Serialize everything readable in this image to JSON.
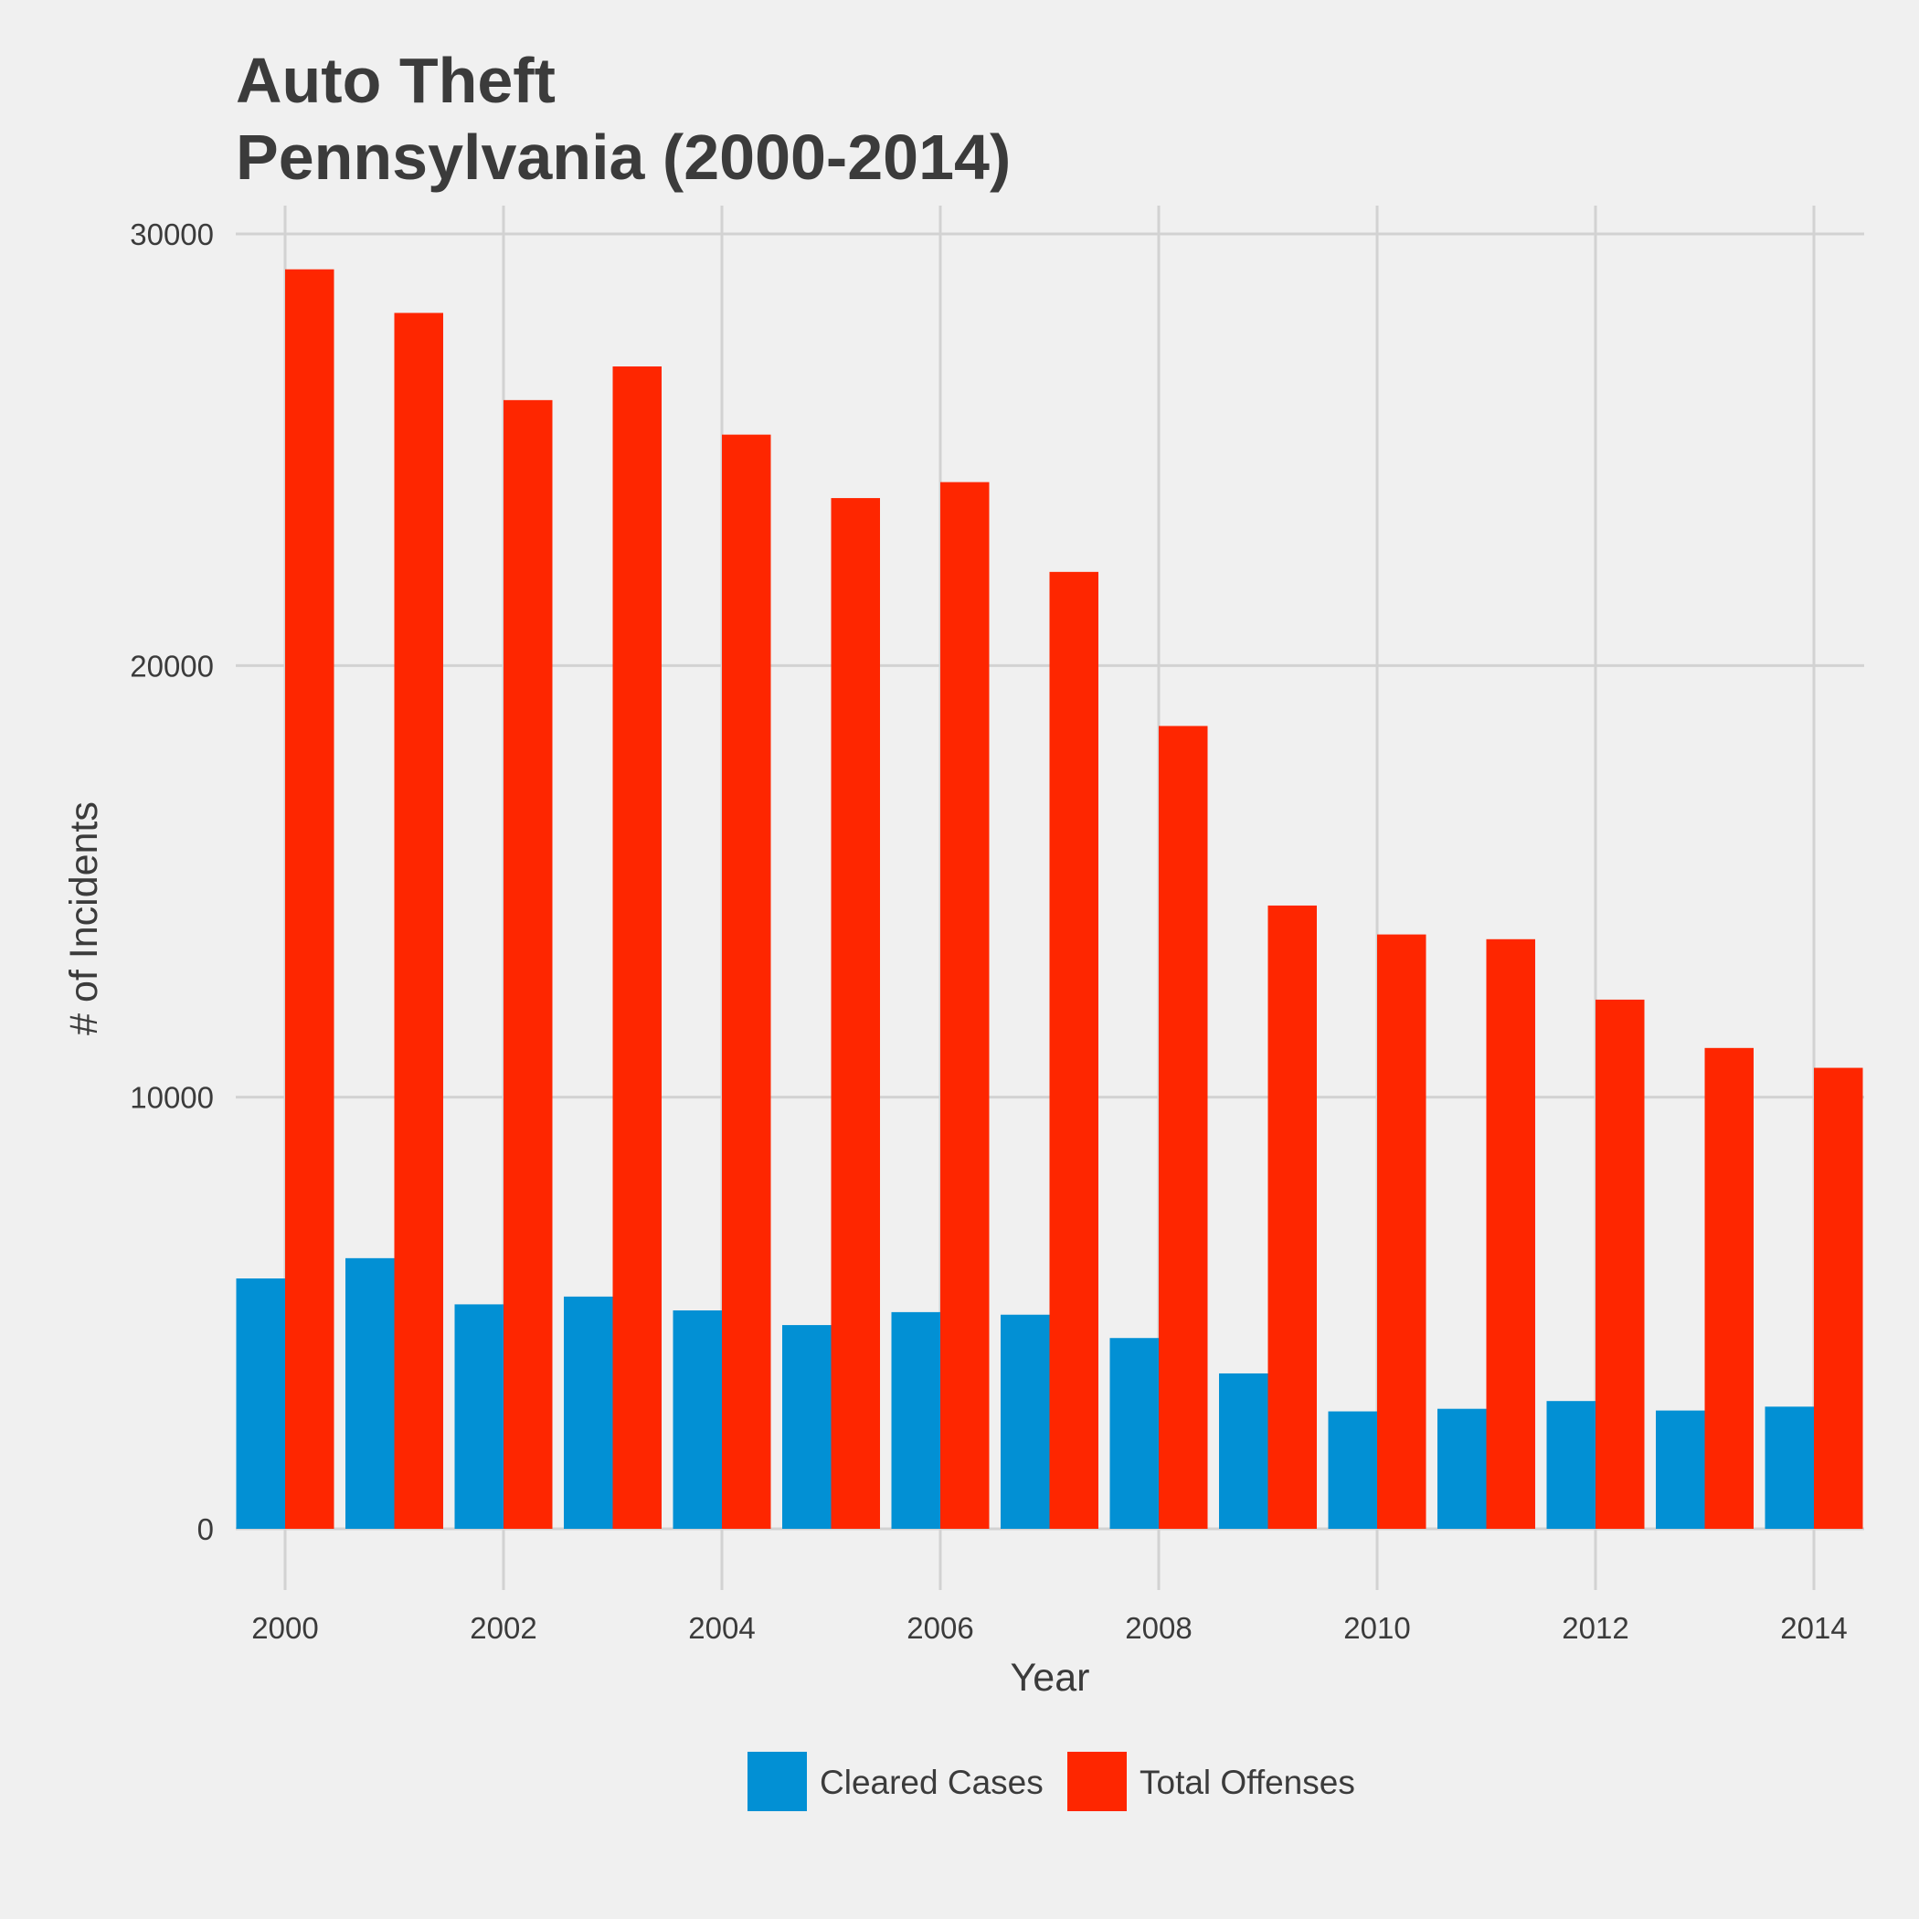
{
  "chart_data": {
    "type": "bar",
    "title_line1": "Auto Theft",
    "title_line2": "Pennsylvania (2000-2014)",
    "xlabel": "Year",
    "ylabel": "# of Incidents",
    "x": [
      2000,
      2001,
      2002,
      2003,
      2004,
      2005,
      2006,
      2007,
      2008,
      2009,
      2010,
      2011,
      2012,
      2013,
      2014
    ],
    "x_ticks": [
      2000,
      2002,
      2004,
      2006,
      2008,
      2010,
      2012,
      2014
    ],
    "y_ticks": [
      0,
      10000,
      20000,
      30000
    ],
    "ylim": [
      0,
      30000
    ],
    "grid": true,
    "legend_position": "bottom",
    "series": [
      {
        "name": "Cleared Cases",
        "color": "#0290d4",
        "values": [
          5800,
          6270,
          5200,
          5380,
          5060,
          4720,
          5020,
          4960,
          4420,
          3600,
          2720,
          2780,
          2960,
          2740,
          2830
        ]
      },
      {
        "name": "Total Offenses",
        "color": "#fe2600",
        "values": [
          29180,
          28170,
          26150,
          26930,
          25350,
          23880,
          24250,
          22170,
          18600,
          14440,
          13770,
          13660,
          12260,
          11140,
          10680
        ]
      }
    ]
  }
}
